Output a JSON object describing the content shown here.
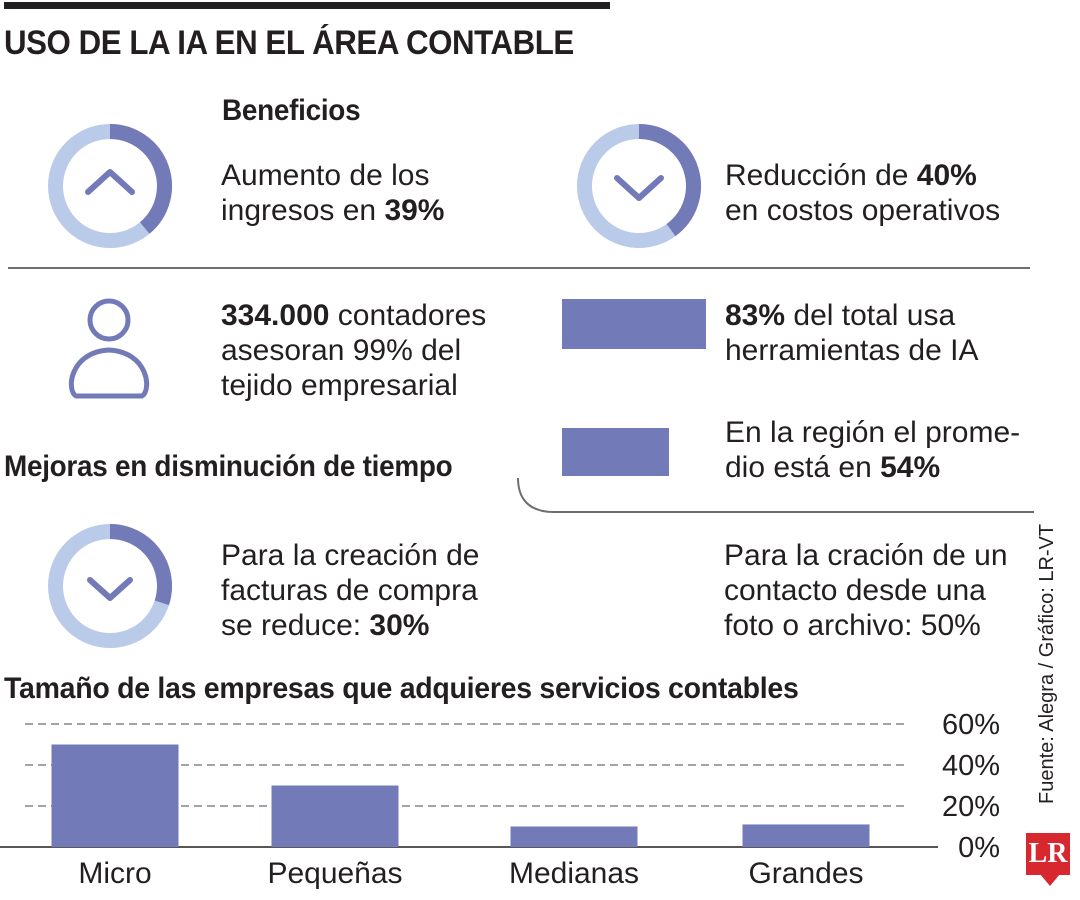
{
  "title": "USO DE LA IA EN EL ÁREA CONTABLE",
  "benefits": {
    "heading": "Beneficios",
    "income": {
      "pre": "Aumento de los",
      "line2": "ingresos en ",
      "value_text": "39%",
      "value": 39
    },
    "costs": {
      "pre": "Reducción de ",
      "value_text": "40%",
      "line2": "en costos operativos",
      "value": 40
    }
  },
  "accountants": {
    "value_text": "334.000",
    "line1_rest": " contadores",
    "line2": "asesoran 99% del",
    "line3": "tejido empresarial"
  },
  "usage": {
    "value_text": "83%",
    "line1_rest": " del total usa",
    "line2": "herramientas de IA",
    "value": 83
  },
  "region": {
    "line1": "En la región el prome-",
    "line2_pre": "dio está en ",
    "value_text": "54%",
    "value": 54
  },
  "time": {
    "heading": "Mejoras en disminución de tiempo",
    "invoices": {
      "line1": "Para la creación de",
      "line2": "facturas de compra",
      "line3_pre": "se reduce: ",
      "value_text": "30%",
      "value": 30
    },
    "contacts": {
      "line1": "Para la cración de un",
      "line2": "contacto desde una",
      "line3": "foto o archivo: 50%"
    }
  },
  "source": "Fuente: Alegra / Gráfico: LR-VT",
  "logo": "LR",
  "colors": {
    "accent": "#737ab8",
    "light": "#b9cbe8",
    "text": "#231f20",
    "logo": "#d7282f"
  },
  "chart_data": {
    "type": "bar",
    "title": "Tamaño de las empresas que adquieres servicios contables",
    "categories": [
      "Micro",
      "Pequeñas",
      "Medianas",
      "Grandes"
    ],
    "values": [
      50,
      30,
      10,
      11
    ],
    "yticks": [
      "0%",
      "20%",
      "40%",
      "60%"
    ],
    "ytick_values": [
      0,
      20,
      40,
      60
    ],
    "ylim": [
      0,
      60
    ],
    "grid": true,
    "axis_side": "right"
  }
}
